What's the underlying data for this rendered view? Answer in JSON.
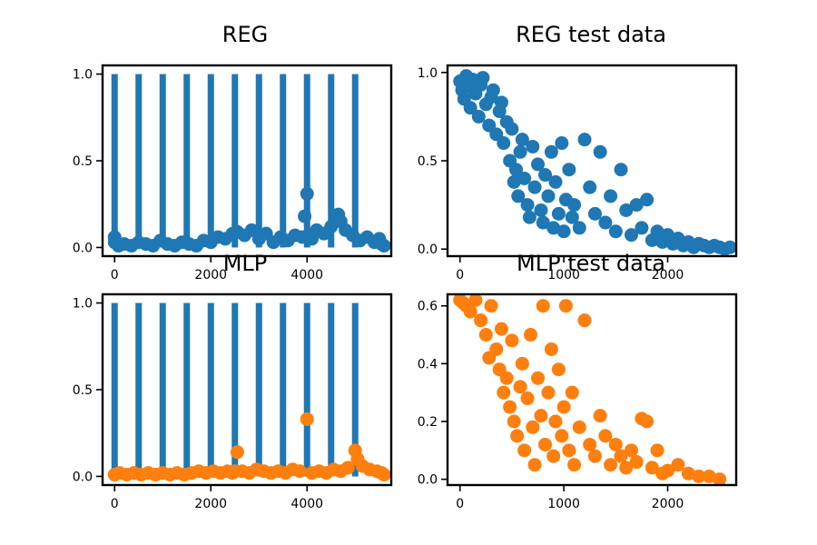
{
  "colors": {
    "blue": "#1f77b4",
    "orange": "#ff7f0e",
    "background": "#ffffff",
    "axis": "#000000"
  },
  "chart_data": [
    {
      "type": "bar+scatter",
      "title": "REG",
      "xlabel": "",
      "ylabel": "",
      "xlim": [
        -250,
        5750
      ],
      "ylim": [
        -0.05,
        1.05
      ],
      "xticks": [
        0,
        2000,
        4000
      ],
      "yticks": [
        0.0,
        0.5,
        1.0
      ],
      "ytick_labels": [
        "0.0",
        "0.5",
        "1.0"
      ],
      "grid": false,
      "bars": {
        "x": [
          0,
          500,
          1000,
          1500,
          2000,
          2500,
          3000,
          3500,
          4000,
          4500,
          5000
        ],
        "values": [
          1,
          1,
          1,
          1,
          1,
          1,
          1,
          1,
          1,
          1,
          1
        ],
        "color": "#1f77b4"
      },
      "scatter": {
        "color": "#1f77b4",
        "points": [
          [
            0,
            0.06
          ],
          [
            0,
            0.03
          ],
          [
            80,
            0.01
          ],
          [
            200,
            0.02
          ],
          [
            350,
            0.01
          ],
          [
            500,
            0.03
          ],
          [
            650,
            0.02
          ],
          [
            800,
            0.01
          ],
          [
            950,
            0.04
          ],
          [
            1100,
            0.02
          ],
          [
            1250,
            0.01
          ],
          [
            1400,
            0.03
          ],
          [
            1550,
            0.02
          ],
          [
            1700,
            0.01
          ],
          [
            1850,
            0.04
          ],
          [
            2000,
            0.03
          ],
          [
            2150,
            0.06
          ],
          [
            2300,
            0.05
          ],
          [
            2450,
            0.08
          ],
          [
            2550,
            0.09
          ],
          [
            2700,
            0.07
          ],
          [
            2850,
            0.1
          ],
          [
            3000,
            0.05
          ],
          [
            3150,
            0.08
          ],
          [
            3300,
            0.03
          ],
          [
            3450,
            0.06
          ],
          [
            3600,
            0.04
          ],
          [
            3750,
            0.07
          ],
          [
            3900,
            0.06
          ],
          [
            3950,
            0.18
          ],
          [
            4000,
            0.31
          ],
          [
            4100,
            0.05
          ],
          [
            4200,
            0.1
          ],
          [
            4350,
            0.08
          ],
          [
            4500,
            0.12
          ],
          [
            4650,
            0.19
          ],
          [
            4700,
            0.15
          ],
          [
            4800,
            0.1
          ],
          [
            4950,
            0.07
          ],
          [
            5100,
            0.04
          ],
          [
            5250,
            0.06
          ],
          [
            5400,
            0.03
          ],
          [
            5500,
            0.05
          ],
          [
            5550,
            0.02
          ],
          [
            5600,
            0.01
          ]
        ]
      }
    },
    {
      "type": "scatter",
      "title": "REG test data",
      "xlabel": "",
      "ylabel": "",
      "xlim": [
        -120,
        2660
      ],
      "ylim": [
        -0.04,
        1.04
      ],
      "xticks": [
        0,
        1000,
        2000
      ],
      "yticks": [
        0.0,
        0.5,
        1.0
      ],
      "ytick_labels": [
        "0.0",
        "0.5",
        "1.0"
      ],
      "grid": false,
      "scatter": {
        "color": "#1f77b4",
        "points": [
          [
            0,
            0.95
          ],
          [
            20,
            0.9
          ],
          [
            40,
            0.85
          ],
          [
            60,
            0.98
          ],
          [
            80,
            0.92
          ],
          [
            100,
            0.8
          ],
          [
            120,
            0.96
          ],
          [
            150,
            0.88
          ],
          [
            180,
            0.75
          ],
          [
            200,
            0.93
          ],
          [
            220,
            0.97
          ],
          [
            250,
            0.82
          ],
          [
            280,
            0.7
          ],
          [
            300,
            0.86
          ],
          [
            320,
            0.9
          ],
          [
            350,
            0.65
          ],
          [
            380,
            0.78
          ],
          [
            400,
            0.83
          ],
          [
            420,
            0.6
          ],
          [
            450,
            0.72
          ],
          [
            480,
            0.5
          ],
          [
            500,
            0.68
          ],
          [
            520,
            0.38
          ],
          [
            540,
            0.45
          ],
          [
            560,
            0.3
          ],
          [
            580,
            0.55
          ],
          [
            600,
            0.62
          ],
          [
            620,
            0.4
          ],
          [
            650,
            0.25
          ],
          [
            670,
            0.18
          ],
          [
            700,
            0.58
          ],
          [
            720,
            0.35
          ],
          [
            750,
            0.48
          ],
          [
            780,
            0.22
          ],
          [
            800,
            0.15
          ],
          [
            820,
            0.42
          ],
          [
            850,
            0.3
          ],
          [
            880,
            0.55
          ],
          [
            900,
            0.12
          ],
          [
            920,
            0.38
          ],
          [
            950,
            0.2
          ],
          [
            980,
            0.6
          ],
          [
            1000,
            0.1
          ],
          [
            1020,
            0.28
          ],
          [
            1050,
            0.45
          ],
          [
            1080,
            0.18
          ],
          [
            1100,
            0.25
          ],
          [
            1150,
            0.12
          ],
          [
            1200,
            0.62
          ],
          [
            1250,
            0.35
          ],
          [
            1300,
            0.2
          ],
          [
            1350,
            0.55
          ],
          [
            1400,
            0.15
          ],
          [
            1450,
            0.3
          ],
          [
            1500,
            0.1
          ],
          [
            1550,
            0.45
          ],
          [
            1600,
            0.22
          ],
          [
            1650,
            0.08
          ],
          [
            1700,
            0.25
          ],
          [
            1750,
            0.12
          ],
          [
            1800,
            0.28
          ],
          [
            1850,
            0.05
          ],
          [
            1900,
            0.1
          ],
          [
            1950,
            0.04
          ],
          [
            2000,
            0.08
          ],
          [
            2050,
            0.03
          ],
          [
            2100,
            0.06
          ],
          [
            2150,
            0.02
          ],
          [
            2200,
            0.04
          ],
          [
            2250,
            0.01
          ],
          [
            2300,
            0.03
          ],
          [
            2350,
            0.02
          ],
          [
            2400,
            0.01
          ],
          [
            2450,
            0.02
          ],
          [
            2500,
            0.01
          ],
          [
            2550,
            0.0
          ],
          [
            2600,
            0.01
          ]
        ]
      }
    },
    {
      "type": "bar+scatter",
      "title": "MLP",
      "xlabel": "",
      "ylabel": "",
      "xlim": [
        -250,
        5750
      ],
      "ylim": [
        -0.05,
        1.05
      ],
      "xticks": [
        0,
        2000,
        4000
      ],
      "yticks": [
        0.0,
        0.5,
        1.0
      ],
      "ytick_labels": [
        "0.0",
        "0.5",
        "1.0"
      ],
      "grid": false,
      "bars": {
        "x": [
          0,
          500,
          1000,
          1500,
          2000,
          2500,
          3000,
          3500,
          4000,
          4500,
          5000
        ],
        "values": [
          1,
          1,
          1,
          1,
          1,
          1,
          1,
          1,
          1,
          1,
          1
        ],
        "color": "#1f77b4"
      },
      "scatter": {
        "color": "#ff7f0e",
        "points": [
          [
            0,
            0.01
          ],
          [
            100,
            0.02
          ],
          [
            250,
            0.01
          ],
          [
            400,
            0.02
          ],
          [
            550,
            0.01
          ],
          [
            700,
            0.02
          ],
          [
            850,
            0.01
          ],
          [
            1000,
            0.02
          ],
          [
            1150,
            0.01
          ],
          [
            1300,
            0.02
          ],
          [
            1450,
            0.01
          ],
          [
            1600,
            0.02
          ],
          [
            1750,
            0.03
          ],
          [
            1900,
            0.02
          ],
          [
            2050,
            0.03
          ],
          [
            2200,
            0.02
          ],
          [
            2350,
            0.03
          ],
          [
            2450,
            0.02
          ],
          [
            2500,
            0.03
          ],
          [
            2550,
            0.14
          ],
          [
            2650,
            0.03
          ],
          [
            2800,
            0.02
          ],
          [
            2950,
            0.04
          ],
          [
            3100,
            0.03
          ],
          [
            3250,
            0.02
          ],
          [
            3400,
            0.03
          ],
          [
            3550,
            0.02
          ],
          [
            3700,
            0.04
          ],
          [
            3850,
            0.03
          ],
          [
            4000,
            0.33
          ],
          [
            4100,
            0.02
          ],
          [
            4250,
            0.03
          ],
          [
            4400,
            0.02
          ],
          [
            4550,
            0.04
          ],
          [
            4700,
            0.03
          ],
          [
            4850,
            0.05
          ],
          [
            5000,
            0.15
          ],
          [
            5050,
            0.1
          ],
          [
            5150,
            0.06
          ],
          [
            5300,
            0.04
          ],
          [
            5450,
            0.03
          ],
          [
            5550,
            0.02
          ],
          [
            5600,
            0.01
          ]
        ]
      }
    },
    {
      "type": "scatter",
      "title": "MLP test data",
      "xlabel": "",
      "ylabel": "",
      "xlim": [
        -120,
        2660
      ],
      "ylim": [
        -0.02,
        0.64
      ],
      "xticks": [
        0,
        1000,
        2000
      ],
      "yticks": [
        0.0,
        0.2,
        0.4,
        0.6
      ],
      "ytick_labels": [
        "0.0",
        "0.2",
        "0.4",
        "0.6"
      ],
      "grid": false,
      "scatter": {
        "color": "#ff7f0e",
        "points": [
          [
            0,
            0.62
          ],
          [
            30,
            0.61
          ],
          [
            60,
            0.6
          ],
          [
            100,
            0.58
          ],
          [
            150,
            0.62
          ],
          [
            200,
            0.55
          ],
          [
            250,
            0.5
          ],
          [
            280,
            0.42
          ],
          [
            300,
            0.6
          ],
          [
            350,
            0.45
          ],
          [
            380,
            0.38
          ],
          [
            400,
            0.52
          ],
          [
            420,
            0.3
          ],
          [
            450,
            0.35
          ],
          [
            480,
            0.25
          ],
          [
            500,
            0.48
          ],
          [
            520,
            0.2
          ],
          [
            550,
            0.15
          ],
          [
            580,
            0.32
          ],
          [
            600,
            0.4
          ],
          [
            620,
            0.1
          ],
          [
            650,
            0.28
          ],
          [
            680,
            0.5
          ],
          [
            700,
            0.18
          ],
          [
            720,
            0.05
          ],
          [
            750,
            0.35
          ],
          [
            780,
            0.22
          ],
          [
            800,
            0.6
          ],
          [
            820,
            0.12
          ],
          [
            850,
            0.3
          ],
          [
            880,
            0.45
          ],
          [
            900,
            0.08
          ],
          [
            920,
            0.2
          ],
          [
            950,
            0.38
          ],
          [
            980,
            0.15
          ],
          [
            1000,
            0.25
          ],
          [
            1020,
            0.6
          ],
          [
            1050,
            0.1
          ],
          [
            1080,
            0.3
          ],
          [
            1100,
            0.05
          ],
          [
            1150,
            0.18
          ],
          [
            1200,
            0.55
          ],
          [
            1250,
            0.12
          ],
          [
            1300,
            0.08
          ],
          [
            1350,
            0.22
          ],
          [
            1400,
            0.15
          ],
          [
            1450,
            0.05
          ],
          [
            1500,
            0.12
          ],
          [
            1550,
            0.08
          ],
          [
            1600,
            0.04
          ],
          [
            1650,
            0.1
          ],
          [
            1700,
            0.06
          ],
          [
            1750,
            0.21
          ],
          [
            1800,
            0.2
          ],
          [
            1850,
            0.04
          ],
          [
            1900,
            0.1
          ],
          [
            1950,
            0.02
          ],
          [
            2000,
            0.03
          ],
          [
            2100,
            0.05
          ],
          [
            2200,
            0.02
          ],
          [
            2300,
            0.01
          ],
          [
            2400,
            0.01
          ],
          [
            2500,
            0.0
          ]
        ]
      }
    }
  ]
}
